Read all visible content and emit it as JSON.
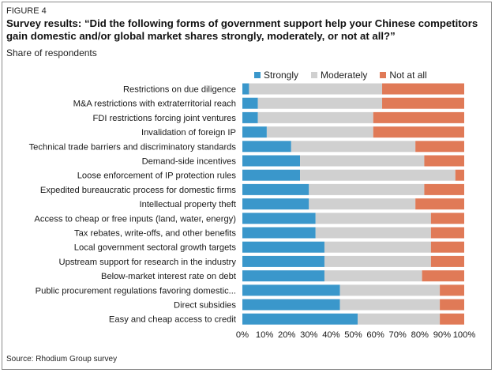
{
  "figure_label": "FIGURE 4",
  "title": "Survey results: “Did the following forms of government support help your Chinese competitors gain domestic and/or global market shares strongly, moderately, or not at all?”",
  "subtitle": "Share of respondents",
  "source": "Source: Rhodium Group survey",
  "colors": {
    "strongly": "#3a97cb",
    "moderately": "#d0d0d0",
    "not_at_all": "#e07a57"
  },
  "chart_data": {
    "type": "bar",
    "orientation": "horizontal",
    "stacked": true,
    "title": "",
    "xlabel": "",
    "ylabel": "",
    "xlim": [
      0,
      100
    ],
    "x_ticks": [
      "0%",
      "10%",
      "20%",
      "30%",
      "40%",
      "50%",
      "60%",
      "70%",
      "80%",
      "90%",
      "100%"
    ],
    "legend_position": "top",
    "grid": false,
    "categories": [
      "Restrictions on due diligence",
      "M&A restrictions with extraterritorial reach",
      "FDI restrictions forcing joint ventures",
      "Invalidation of foreign IP",
      "Technical trade barriers and discriminatory standards",
      "Demand-side incentives",
      "Loose enforcement of IP protection rules",
      "Expedited bureaucratic process for domestic firms",
      "Intellectual property theft",
      "Access to cheap or free inputs (land, water, energy)",
      "Tax rebates, write-offs, and other benefits",
      "Local government sectoral growth targets",
      "Upstream support for research in the industry",
      "Below-market interest rate on debt",
      "Public procurement regulations favoring domestic...",
      "Direct subsidies",
      "Easy and cheap access to credit"
    ],
    "series": [
      {
        "name": "Strongly",
        "values": [
          3,
          7,
          7,
          11,
          22,
          26,
          26,
          30,
          30,
          33,
          33,
          37,
          37,
          37,
          44,
          44,
          52
        ]
      },
      {
        "name": "Moderately",
        "values": [
          60,
          56,
          52,
          48,
          56,
          56,
          70,
          52,
          48,
          52,
          52,
          48,
          48,
          44,
          45,
          45,
          37
        ]
      },
      {
        "name": "Not at all",
        "values": [
          37,
          37,
          41,
          41,
          22,
          18,
          4,
          18,
          22,
          15,
          15,
          15,
          15,
          19,
          11,
          11,
          11
        ]
      }
    ]
  }
}
